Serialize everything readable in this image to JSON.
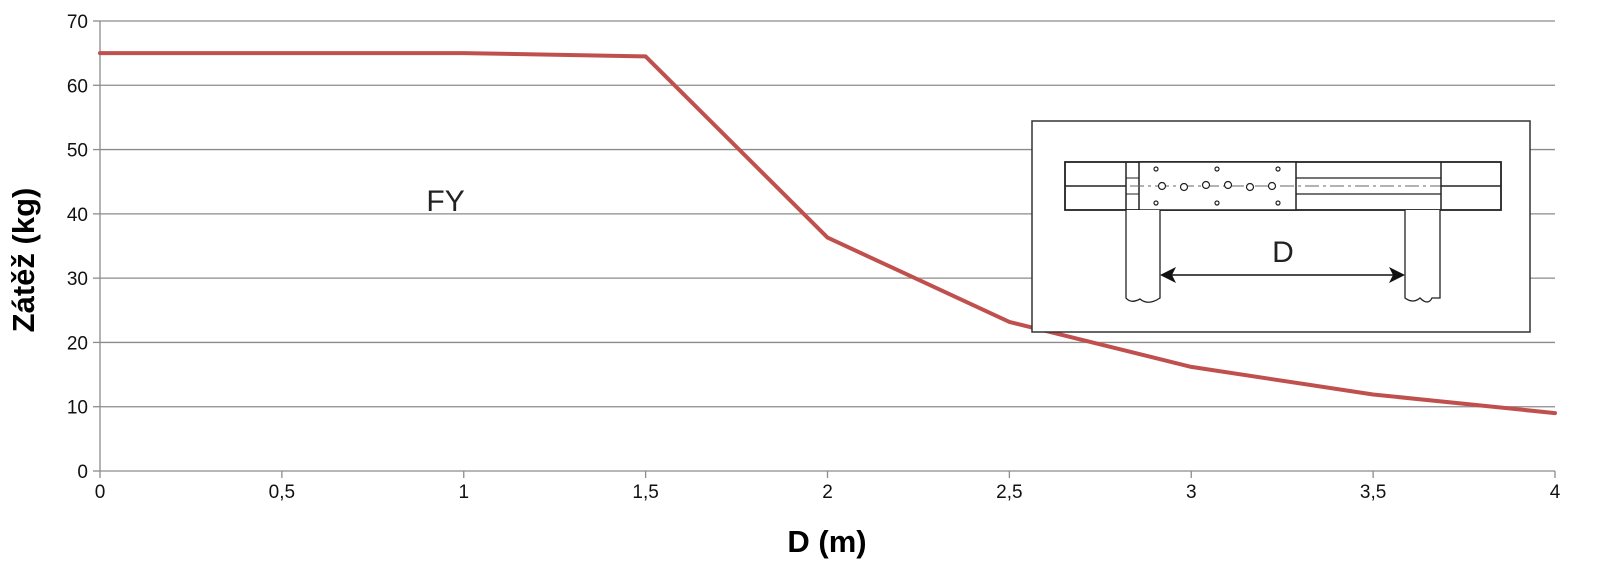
{
  "chart_data": {
    "type": "line",
    "title": "",
    "xlabel": "D (m)",
    "ylabel": "Zátěž (kg)",
    "xlim": [
      0,
      4
    ],
    "ylim": [
      0,
      70
    ],
    "x_ticks": [
      0,
      0.5,
      1,
      1.5,
      2,
      2.5,
      3,
      3.5,
      4
    ],
    "x_tick_labels": [
      "0",
      "0,5",
      "1",
      "1,5",
      "2",
      "2,5",
      "3",
      "3,5",
      "4"
    ],
    "y_ticks": [
      0,
      10,
      20,
      30,
      40,
      50,
      60,
      70
    ],
    "y_tick_labels": [
      "0",
      "10",
      "20",
      "30",
      "40",
      "50",
      "60",
      "70"
    ],
    "grid": true,
    "series": [
      {
        "name": "FY",
        "color": "#c0504d",
        "x": [
          0,
          1,
          1.5,
          2,
          2.5,
          3,
          3.5,
          4
        ],
        "y": [
          65,
          65,
          64.5,
          36.3,
          23.2,
          16.2,
          11.9,
          9
        ]
      }
    ],
    "annotations": [
      {
        "text": "FY",
        "x": 0.95,
        "y": 42
      }
    ],
    "inset": {
      "label": "D"
    }
  }
}
